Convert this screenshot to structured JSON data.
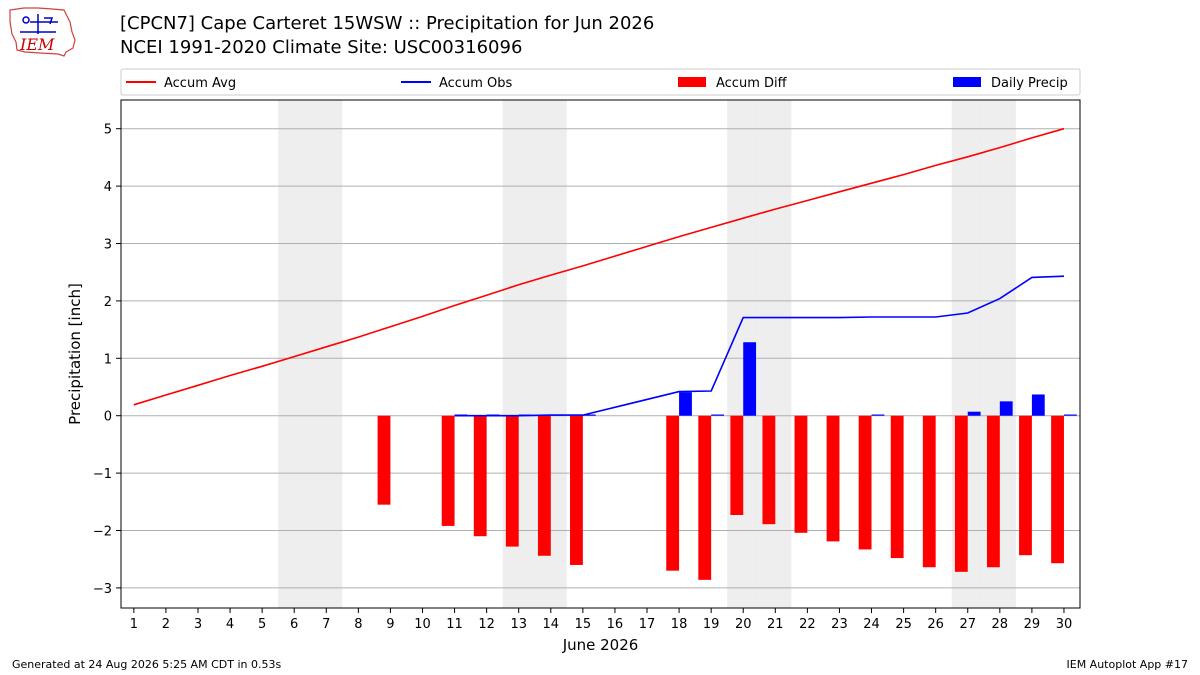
{
  "header": {
    "title_line1": "[CPCN7] Cape Carteret 15WSW :: Precipitation for Jun 2026",
    "title_line2": "NCEI 1991-2020 Climate Site: USC00316096"
  },
  "logo": {
    "text": "IEM"
  },
  "footer": {
    "generated": "Generated at 24 Aug 2026 5:25 AM CDT in 0.53s",
    "app": "IEM Autoplot App #17"
  },
  "colors": {
    "avg": "#ff0000",
    "obs": "#0000ff",
    "diff": "#ff0000",
    "daily": "#0000ff",
    "weekend": "#eeeeee",
    "grid": "#b0b0b0"
  },
  "chart_data": {
    "type": "bar",
    "xlabel": "June 2026",
    "ylabel": "Precipitation [inch]",
    "xlim": [
      0.6,
      30.5
    ],
    "ylim": [
      -3.35,
      5.5
    ],
    "yticks": [
      -3,
      -2,
      -1,
      0,
      1,
      2,
      3,
      4,
      5
    ],
    "ytick_labels": [
      "−3",
      "−2",
      "−1",
      "0",
      "1",
      "2",
      "3",
      "4",
      "5"
    ],
    "x": [
      1,
      2,
      3,
      4,
      5,
      6,
      7,
      8,
      9,
      10,
      11,
      12,
      13,
      14,
      15,
      16,
      17,
      18,
      19,
      20,
      21,
      22,
      23,
      24,
      25,
      26,
      27,
      28,
      29,
      30
    ],
    "weekend_days": [
      6,
      7,
      13,
      14,
      20,
      21,
      27,
      28
    ],
    "grid": true,
    "legend": {
      "placement": "top",
      "entries": [
        "Accum Avg",
        "Accum Obs",
        "Accum Diff",
        "Daily Precip"
      ]
    },
    "series": [
      {
        "name": "Accum Avg",
        "kind": "line",
        "x": [
          1,
          2,
          3,
          4,
          5,
          6,
          7,
          8,
          9,
          10,
          11,
          12,
          13,
          14,
          15,
          16,
          17,
          18,
          19,
          20,
          21,
          22,
          23,
          24,
          25,
          26,
          27,
          28,
          29,
          30
        ],
        "values": [
          0.19,
          0.36,
          0.53,
          0.7,
          0.86,
          1.03,
          1.2,
          1.37,
          1.55,
          1.73,
          1.92,
          2.1,
          2.28,
          2.45,
          2.61,
          2.78,
          2.95,
          3.12,
          3.28,
          3.44,
          3.6,
          3.75,
          3.9,
          4.05,
          4.2,
          4.36,
          4.51,
          4.67,
          4.84,
          5.0
        ]
      },
      {
        "name": "Accum Obs",
        "kind": "line",
        "x": [
          11,
          12,
          13,
          14,
          15,
          18,
          19,
          20,
          21,
          22,
          23,
          24,
          25,
          26,
          27,
          28,
          29,
          30
        ],
        "values": [
          0.0,
          0.0,
          0.0,
          0.01,
          0.01,
          0.42,
          0.43,
          1.71,
          1.71,
          1.71,
          1.71,
          1.72,
          1.72,
          1.72,
          1.79,
          2.04,
          2.41,
          2.43
        ]
      },
      {
        "name": "Accum Diff",
        "kind": "bar",
        "x": [
          9,
          11,
          12,
          13,
          14,
          15,
          18,
          19,
          20,
          21,
          22,
          23,
          24,
          25,
          26,
          27,
          28,
          29,
          30
        ],
        "values": [
          -1.55,
          -1.92,
          -2.1,
          -2.28,
          -2.44,
          -2.6,
          -2.7,
          -2.86,
          -1.73,
          -1.89,
          -2.04,
          -2.19,
          -2.33,
          -2.48,
          -2.64,
          -2.72,
          -2.64,
          -2.43,
          -2.57
        ]
      },
      {
        "name": "Daily Precip",
        "kind": "bar",
        "x": [
          11,
          12,
          13,
          14,
          15,
          18,
          19,
          20,
          24,
          27,
          28,
          29,
          30
        ],
        "values": [
          0.0,
          0.0,
          0.0,
          0.01,
          0.0,
          0.41,
          0.01,
          1.28,
          0.01,
          0.07,
          0.25,
          0.37,
          0.02
        ]
      }
    ]
  }
}
